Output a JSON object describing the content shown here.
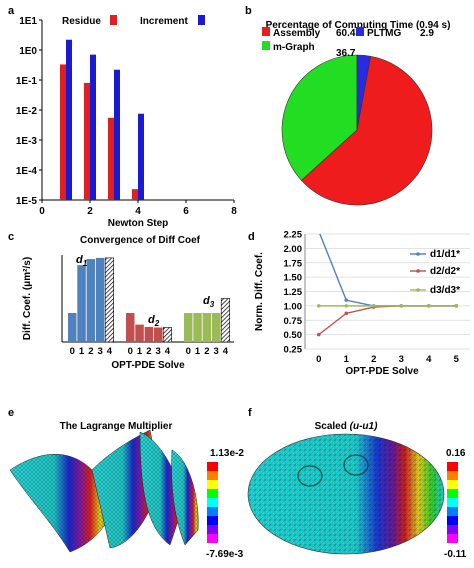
{
  "chart_data": [
    {
      "panel": "a",
      "type": "bar",
      "xlabel": "Newton Step",
      "ylabel": "",
      "yscale": "log",
      "ylim": [
        1e-05,
        10
      ],
      "xlim": [
        0,
        8
      ],
      "x_ticks": [
        "0",
        "2",
        "4",
        "6",
        "8"
      ],
      "y_ticks": [
        "1E-5",
        "1E-4",
        "1E-3",
        "1E-2",
        "1E-1",
        "1E0",
        "1E1"
      ],
      "x": [
        1,
        2,
        3,
        4
      ],
      "series": [
        {
          "name": "Residue",
          "color": "#e02020",
          "values": [
            0.33,
            0.08,
            0.0055,
            2.3e-05
          ]
        },
        {
          "name": "Increment",
          "color": "#1a1ad0",
          "values": [
            2.2,
            0.7,
            0.22,
            0.0075
          ]
        }
      ]
    },
    {
      "panel": "b",
      "type": "pie",
      "title": "Percentage of Computing Time (0.94 s)",
      "slices": [
        {
          "name": "Assembly",
          "value": 60.4,
          "label": "60.4",
          "color": "#ee1c1c"
        },
        {
          "name": "m-Graph",
          "value": 36.7,
          "label": "36.7",
          "color": "#22dd22"
        },
        {
          "name": "PLTMG",
          "value": 2.9,
          "label": "2.9",
          "color": "#2a2ae0"
        }
      ]
    },
    {
      "panel": "c",
      "type": "bar",
      "title": "Convergence of Diff Coef",
      "xlabel": "OPT-PDE Solve",
      "ylabel": "Diff. Coef. (μm²/s)",
      "ylim": [
        0,
        30
      ],
      "y_ticks": [
        "0",
        "5",
        "10",
        "15",
        "20",
        "25",
        "30"
      ],
      "categories": [
        "0",
        "1",
        "2",
        "3",
        "4"
      ],
      "series": [
        {
          "name": "d1",
          "color": "#4f81bd",
          "values": [
            10,
            26.5,
            28.6,
            29,
            29
          ]
        },
        {
          "name": "d2",
          "color": "#c0504d",
          "values": [
            10,
            6,
            5.2,
            5,
            5
          ]
        },
        {
          "name": "d3",
          "color": "#9bbb59",
          "values": [
            10,
            10,
            10,
            10,
            15
          ]
        }
      ]
    },
    {
      "panel": "d",
      "type": "line",
      "xlabel": "OPT-PDE Solve",
      "ylabel": "Norm. Diff. Coef.",
      "ylim": [
        0.25,
        2.25
      ],
      "xlim": [
        -0.5,
        5.5
      ],
      "x_ticks": [
        "0",
        "1",
        "2",
        "3",
        "4",
        "5"
      ],
      "y_ticks": [
        "0.25",
        "0.50",
        "0.75",
        "1.00",
        "1.25",
        "1.50",
        "1.75",
        "2.00",
        "2.25"
      ],
      "x": [
        0,
        1,
        2,
        3,
        4,
        5
      ],
      "series": [
        {
          "name": "d1/d1*",
          "color": "#4f81bd",
          "values": [
            2.3,
            1.1,
            1.0,
            1.0,
            1.0,
            1.0
          ]
        },
        {
          "name": "d2/d2*",
          "color": "#c0504d",
          "values": [
            0.5,
            0.87,
            0.98,
            1.0,
            1.0,
            1.0
          ]
        },
        {
          "name": "d3/d3*",
          "color": "#9bbb59",
          "values": [
            1.0,
            1.0,
            1.0,
            1.0,
            1.0,
            1.0
          ]
        }
      ]
    },
    {
      "panel": "e",
      "type": "other",
      "title": "The Lagrange Multiplier",
      "colorbar": {
        "max": "1.13e-2",
        "min": "-7.69e-3"
      }
    },
    {
      "panel": "f",
      "type": "other",
      "title": "Scaled ",
      "title_italic": "(u-u1)",
      "colorbar": {
        "max": "0.16",
        "min": "-0.11"
      }
    }
  ],
  "panel_labels": [
    "a",
    "b",
    "c",
    "d",
    "e",
    "f"
  ],
  "series_tags": [
    "d",
    "1",
    "d",
    "2",
    "d",
    "3"
  ],
  "colormap": [
    "#ff0000",
    "#ff7f00",
    "#ffff00",
    "#00ff00",
    "#00ffff",
    "#0080ff",
    "#0000ff",
    "#8000ff",
    "#ff00ff"
  ]
}
